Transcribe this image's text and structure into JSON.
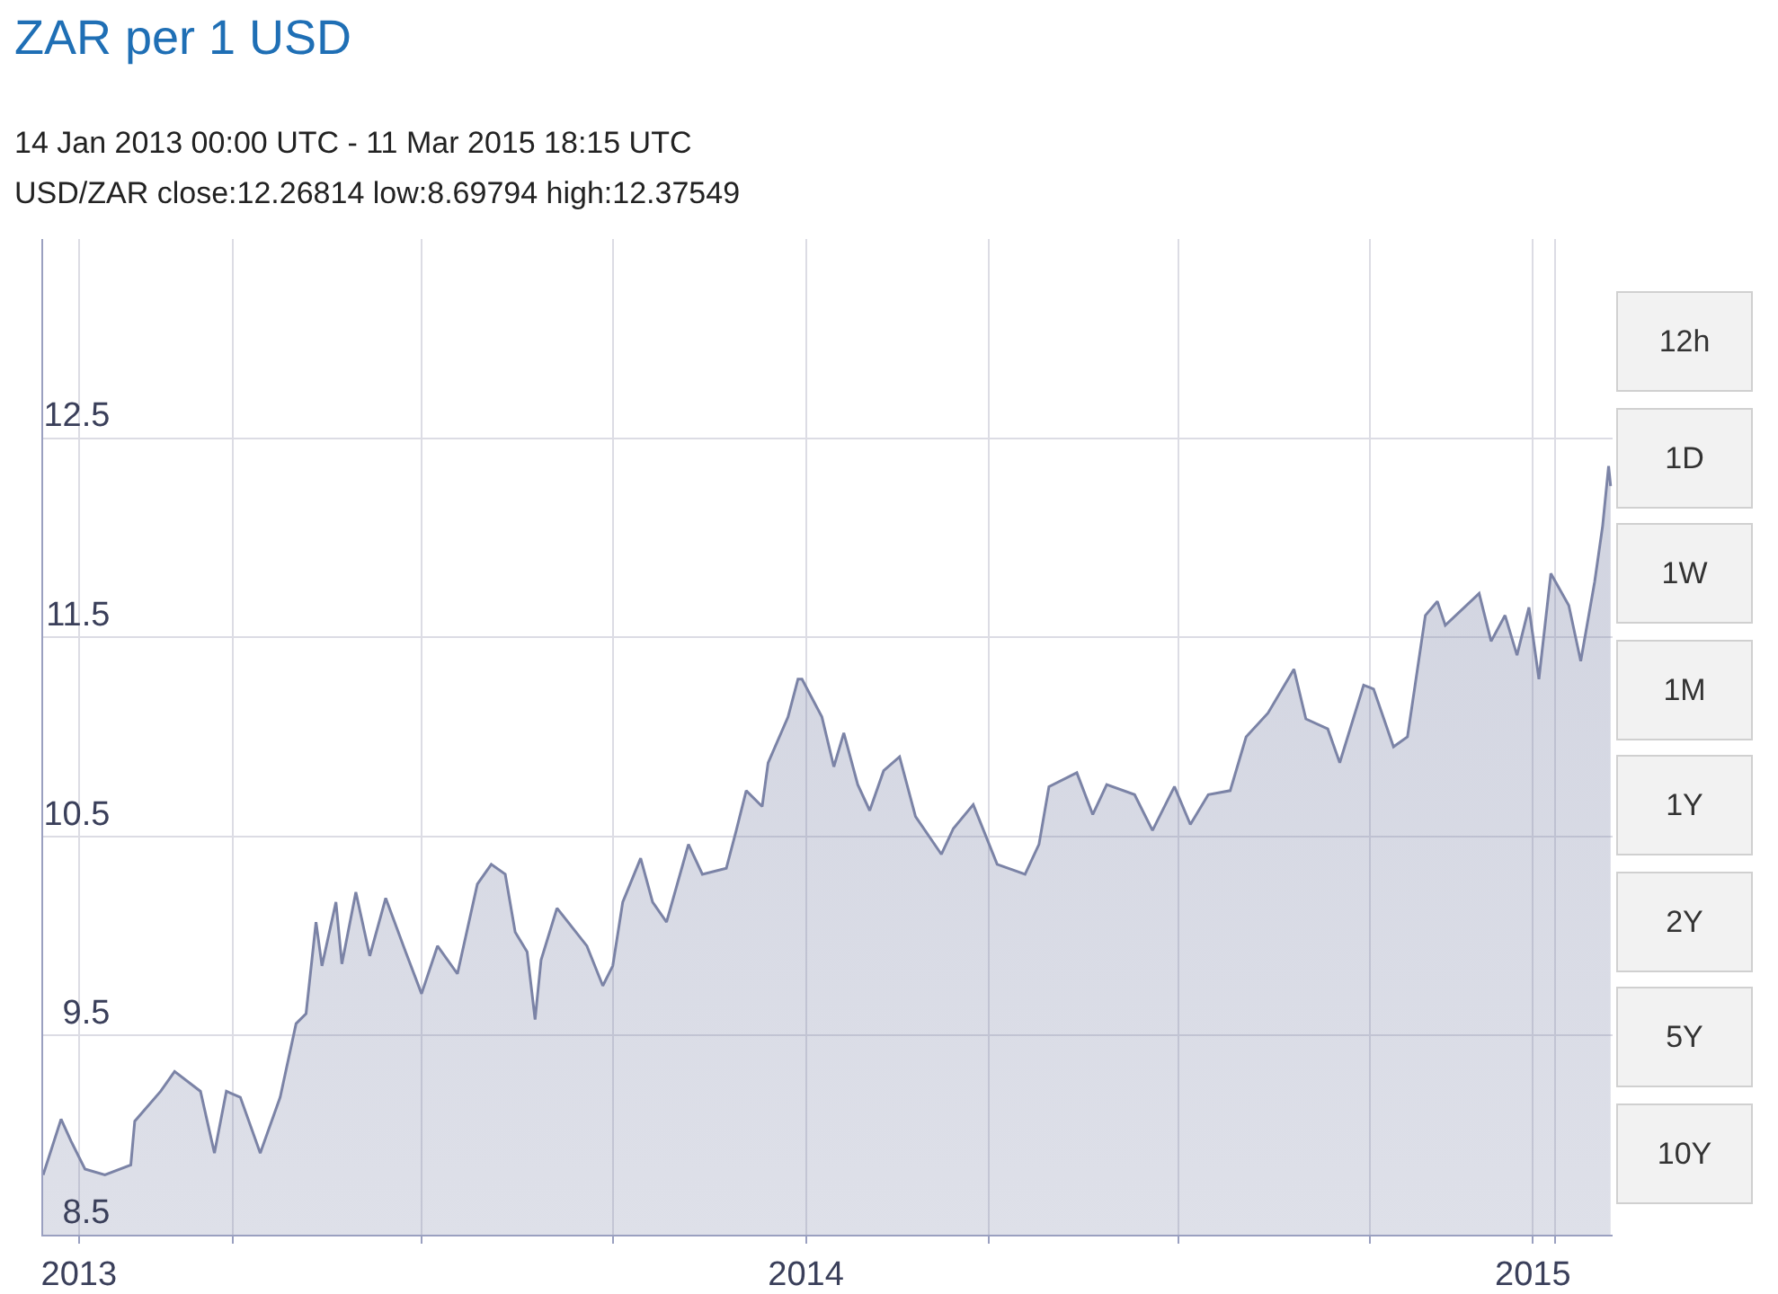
{
  "chart_data": {
    "type": "area",
    "title": "ZAR per 1 USD",
    "subtitle": [
      "14 Jan 2013 00:00 UTC - 11 Mar 2015 18:15 UTC",
      "USD/ZAR close:12.26814 low:8.69794 high:12.37549"
    ],
    "x": [
      "2012-12-14",
      "2012-12-23",
      "2012-12-28",
      "2013-01-04",
      "2013-01-14",
      "2013-01-27",
      "2013-01-29",
      "2013-02-11",
      "2013-02-18",
      "2013-03-03",
      "2013-03-10",
      "2013-03-16",
      "2013-03-23",
      "2013-04-02",
      "2013-04-12",
      "2013-04-20",
      "2013-04-25",
      "2013-04-30",
      "2013-05-03",
      "2013-05-10",
      "2013-05-13",
      "2013-05-20",
      "2013-05-27",
      "2013-06-04",
      "2013-06-14",
      "2013-06-22",
      "2013-06-30",
      "2013-07-10",
      "2013-07-20",
      "2013-07-27",
      "2013-08-03",
      "2013-08-08",
      "2013-08-14",
      "2013-08-18",
      "2013-08-21",
      "2013-08-29",
      "2013-09-13",
      "2013-09-21",
      "2013-09-26",
      "2013-10-01",
      "2013-10-10",
      "2013-10-16",
      "2013-10-23",
      "2013-11-03",
      "2013-11-10",
      "2013-11-22",
      "2013-11-27",
      "2013-12-02",
      "2013-12-10",
      "2013-12-13",
      "2013-12-23",
      "2013-12-28",
      "2013-12-30",
      "2014-01-09",
      "2014-01-15",
      "2014-01-20",
      "2014-01-27",
      "2014-02-02",
      "2014-02-09",
      "2014-02-17",
      "2014-02-25",
      "2014-03-10",
      "2014-03-16",
      "2014-03-26",
      "2014-04-07",
      "2014-04-21",
      "2014-04-28",
      "2014-05-03",
      "2014-05-17",
      "2014-05-25",
      "2014-06-01",
      "2014-06-15",
      "2014-06-24",
      "2014-07-05",
      "2014-07-13",
      "2014-07-22",
      "2014-08-02",
      "2014-08-10",
      "2014-08-21",
      "2014-09-03",
      "2014-09-09",
      "2014-09-20",
      "2014-09-26",
      "2014-10-08",
      "2014-10-13",
      "2014-10-23",
      "2014-10-30",
      "2014-11-08",
      "2014-11-14",
      "2014-11-18",
      "2014-12-05",
      "2014-12-11",
      "2014-12-18",
      "2014-12-24",
      "2014-12-30",
      "2015-01-04",
      "2015-01-10",
      "2015-01-19",
      "2015-01-25",
      "2015-02-01",
      "2015-02-05",
      "2015-02-08",
      "2015-02-09"
    ],
    "series": [
      {
        "color": "#7b83a6",
        "values": [
          8.8,
          9.08,
          8.97,
          8.83,
          8.8,
          8.85,
          9.07,
          9.22,
          9.32,
          9.22,
          8.91,
          9.22,
          9.19,
          8.91,
          9.19,
          9.56,
          9.61,
          10.07,
          9.85,
          10.17,
          9.86,
          10.22,
          9.9,
          10.19,
          9.92,
          9.71,
          9.95,
          9.81,
          10.26,
          10.36,
          10.31,
          10.02,
          9.92,
          9.58,
          9.88,
          10.14,
          9.95,
          9.75,
          9.85,
          10.17,
          10.39,
          10.17,
          10.07,
          10.46,
          10.31,
          10.34,
          10.53,
          10.73,
          10.65,
          10.87,
          11.1,
          11.29,
          11.29,
          11.1,
          10.85,
          11.02,
          10.76,
          10.63,
          10.83,
          10.9,
          10.6,
          10.41,
          10.54,
          10.66,
          10.36,
          10.31,
          10.46,
          10.75,
          10.82,
          10.61,
          10.76,
          10.71,
          10.53,
          10.75,
          10.56,
          10.71,
          10.73,
          11.0,
          11.12,
          11.34,
          11.09,
          11.04,
          10.87,
          11.26,
          11.24,
          10.95,
          11.0,
          11.61,
          11.68,
          11.56,
          11.72,
          11.48,
          11.61,
          11.41,
          11.65,
          11.29,
          11.82,
          11.66,
          11.38,
          11.78,
          12.06,
          12.36,
          12.26
        ]
      }
    ],
    "xlim": [
      "2012-12-14",
      "2015-02-10"
    ],
    "xticks": [
      {
        "value": "2013-01-01",
        "label": "2013"
      },
      {
        "value": "2013-03-19",
        "label": null
      },
      {
        "value": "2013-06-22",
        "label": null
      },
      {
        "value": "2013-09-26",
        "label": null
      },
      {
        "value": "2014-01-01",
        "label": "2014"
      },
      {
        "value": "2014-04-03",
        "label": null
      },
      {
        "value": "2014-07-07",
        "label": null
      },
      {
        "value": "2014-10-11",
        "label": null
      },
      {
        "value": "2015-01-01",
        "label": "2015"
      },
      {
        "value": "2015-01-12",
        "label": null
      }
    ],
    "ylim": [
      8.5,
      13.5
    ],
    "yticks": [
      8.5,
      9.5,
      10.5,
      11.5,
      12.5
    ],
    "grid": true,
    "marker": "none",
    "line_style": "solid",
    "annotations": [
      "12h",
      "1D",
      "1W",
      "1M",
      "1Y",
      "2Y",
      "5Y",
      "10Y"
    ]
  }
}
